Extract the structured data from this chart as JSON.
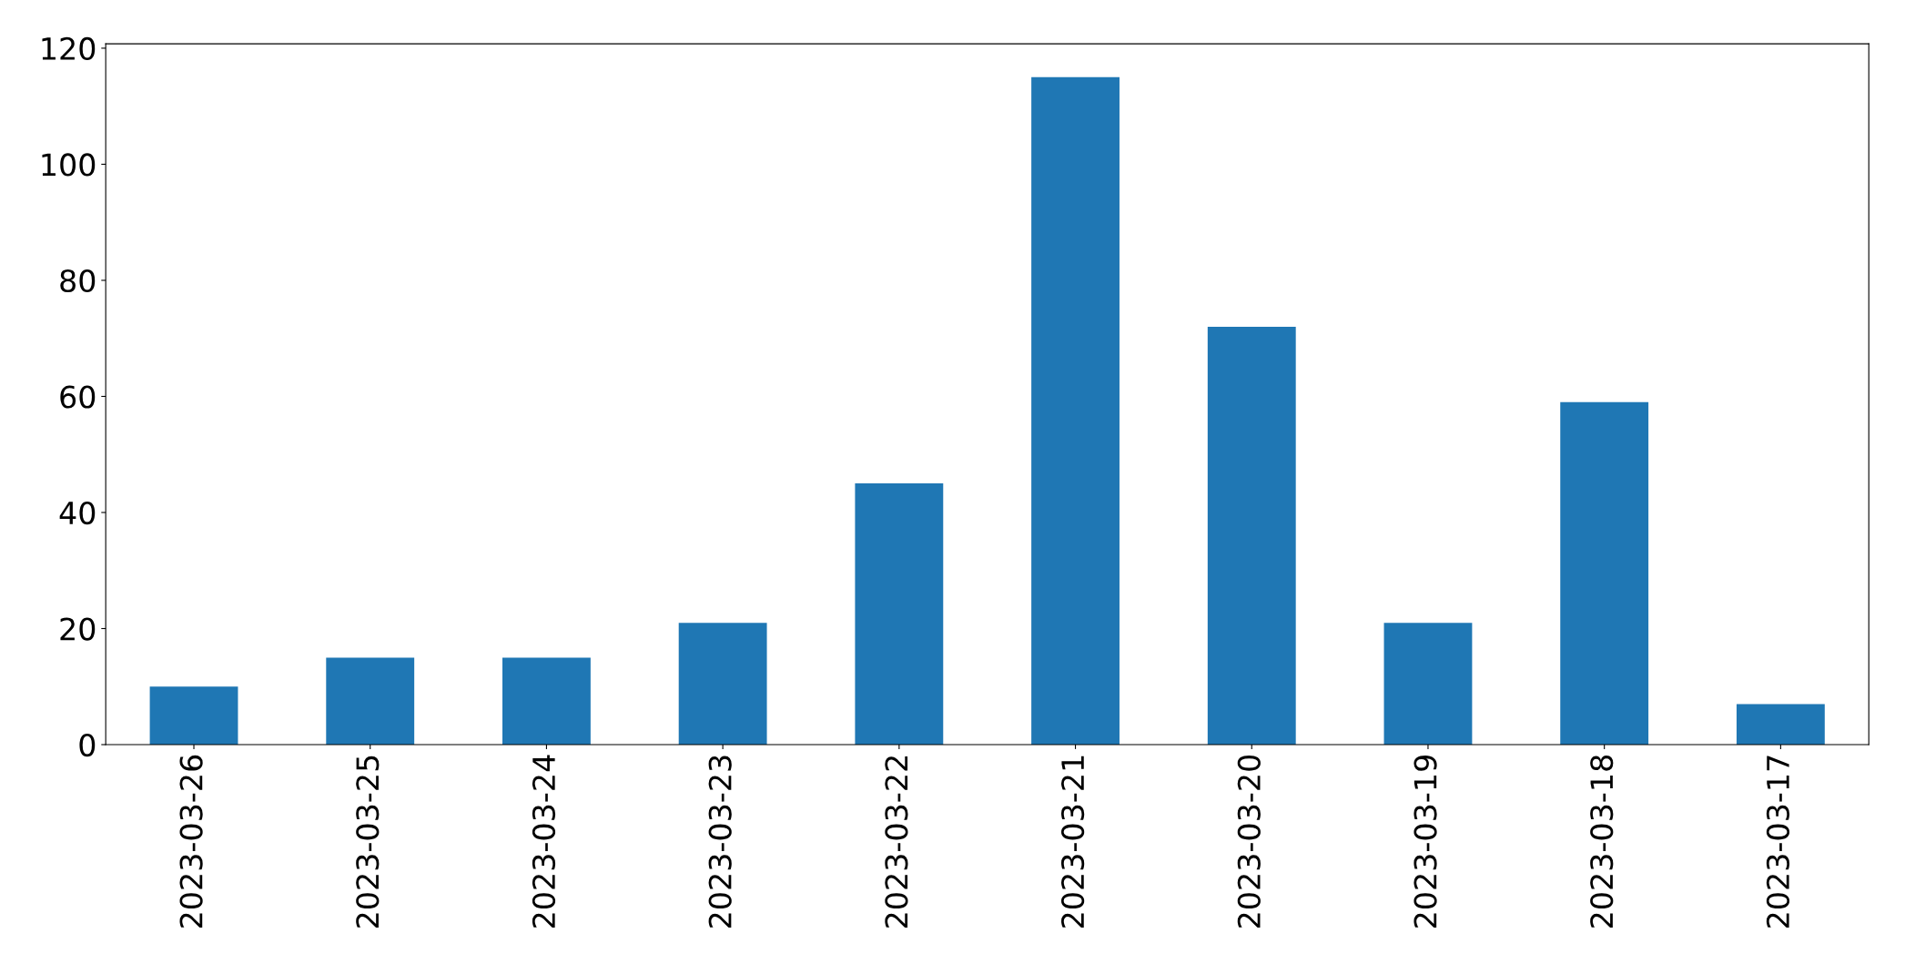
{
  "chart_data": {
    "type": "bar",
    "categories": [
      "2023-03-26",
      "2023-03-25",
      "2023-03-24",
      "2023-03-23",
      "2023-03-22",
      "2023-03-21",
      "2023-03-20",
      "2023-03-19",
      "2023-03-18",
      "2023-03-17"
    ],
    "values": [
      10,
      15,
      15,
      21,
      45,
      115,
      72,
      21,
      59,
      7
    ],
    "color": "#1f77b4",
    "ylim": [
      0,
      120.75
    ],
    "yticks": [
      0,
      20,
      40,
      60,
      80,
      100,
      120
    ],
    "grid": false,
    "legend": false
  }
}
